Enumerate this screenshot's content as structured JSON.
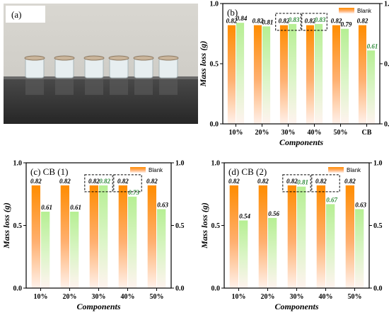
{
  "photo": {
    "tag": "(a)"
  },
  "chart_data": [
    {
      "type": "bar",
      "panel": "(b)",
      "xlabel": "Components",
      "ylabel": "Mass loss (g)",
      "categories": [
        "10%",
        "20%",
        "30%",
        "40%",
        "50%",
        "CB"
      ],
      "ylim": [
        0,
        1.0
      ],
      "yticks": [
        "0.0",
        "0.5",
        "1.0"
      ],
      "legend": [
        "Blank"
      ],
      "legend_position": "top-right",
      "series": [
        {
          "name": "Blank",
          "values": [
            0.82,
            0.82,
            0.82,
            0.82,
            0.82,
            0.82
          ],
          "labels": [
            "0.82",
            "0.82",
            "0.82",
            "0.82",
            "0.82",
            "0.82"
          ]
        },
        {
          "values": [
            0.84,
            0.81,
            0.83,
            0.83,
            0.79,
            0.61
          ],
          "labels": [
            "0.84",
            "0.81",
            "0.83",
            "0.83",
            "0.79",
            "0.61"
          ]
        }
      ],
      "highlight_label_color": [
        "#000000",
        "#000000",
        "#2e8b3a",
        "#2e8b3a",
        "#000000",
        "#2e8b3a"
      ],
      "boxed_categories": [
        2,
        3
      ]
    },
    {
      "type": "bar",
      "panel": "(c) CB (1)",
      "xlabel": "Components",
      "ylabel": "Mass loss (g)",
      "categories": [
        "10%",
        "20%",
        "30%",
        "40%",
        "50%"
      ],
      "ylim": [
        0,
        1.0
      ],
      "yticks": [
        "0.0",
        "0.5",
        "1.0"
      ],
      "legend": [
        "Blank"
      ],
      "legend_position": "top-right",
      "series": [
        {
          "name": "Blank",
          "values": [
            0.82,
            0.82,
            0.82,
            0.82,
            0.82
          ],
          "labels": [
            "0.82",
            "0.82",
            "0.82",
            "0.82",
            "0.82"
          ]
        },
        {
          "values": [
            0.61,
            0.61,
            0.82,
            0.73,
            0.63
          ],
          "labels": [
            "0.61",
            "0.61",
            "0.82",
            "0.73",
            "0.63"
          ]
        }
      ],
      "highlight_label_color": [
        "#000000",
        "#000000",
        "#2e8b3a",
        "#2e8b3a",
        "#000000"
      ],
      "boxed_categories": [
        2,
        3
      ]
    },
    {
      "type": "bar",
      "panel": "(d) CB (2)",
      "xlabel": "Components",
      "ylabel": "Mass loss (g)",
      "categories": [
        "10%",
        "20%",
        "30%",
        "40%",
        "50%"
      ],
      "ylim": [
        0,
        1.0
      ],
      "yticks": [
        "0.0",
        "0.5",
        "1.0"
      ],
      "legend": [
        "Blank"
      ],
      "legend_position": "top-right",
      "series": [
        {
          "name": "Blank",
          "values": [
            0.82,
            0.82,
            0.82,
            0.82,
            0.82
          ],
          "labels": [
            "0.82",
            "0.82",
            "0.82",
            "0.82",
            "0.82"
          ]
        },
        {
          "values": [
            0.54,
            0.56,
            0.81,
            0.67,
            0.63
          ],
          "labels": [
            "0.54",
            "0.56",
            "0.81",
            "0.67",
            "0.63"
          ]
        }
      ],
      "highlight_label_color": [
        "#000000",
        "#000000",
        "#2e8b3a",
        "#2e8b3a",
        "#000000"
      ],
      "boxed_categories": [
        2,
        3
      ]
    }
  ],
  "colors": {
    "blank_top": "#ff8c00",
    "blank_bottom": "#fff1ea",
    "sample_top": "#b6ef93",
    "sample_bottom": "#fff3ef",
    "highlight": "#2e8b3a"
  }
}
